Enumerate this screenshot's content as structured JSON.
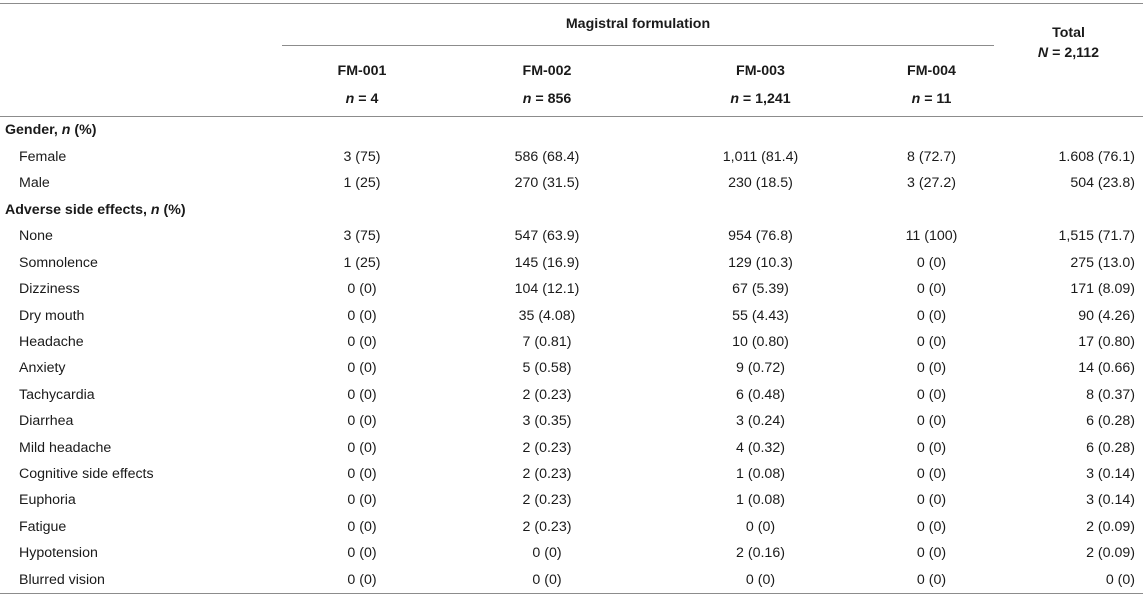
{
  "header": {
    "group_title": "Magistral formulation",
    "total_title": "Total",
    "total_n_prefix": "N",
    "total_n_value": " = 2,112",
    "columns": [
      {
        "code": "FM-001",
        "n_prefix": "n",
        "n_value": " = 4"
      },
      {
        "code": "FM-002",
        "n_prefix": "n",
        "n_value": " = 856"
      },
      {
        "code": "FM-003",
        "n_prefix": "n",
        "n_value": " = 1,241"
      },
      {
        "code": "FM-004",
        "n_prefix": "n",
        "n_value": " = 11"
      }
    ]
  },
  "sections": [
    {
      "title": "Gender, ",
      "title_italic": "n",
      "title_suffix": " (%)",
      "rows": [
        {
          "label": "Female",
          "values": [
            "3 (75)",
            "586 (68.4)",
            "1,011 (81.4)",
            "8 (72.7)",
            "1.608 (76.1)"
          ]
        },
        {
          "label": "Male",
          "values": [
            "1 (25)",
            "270 (31.5)",
            "230 (18.5)",
            "3 (27.2)",
            "504 (23.8)"
          ]
        }
      ]
    },
    {
      "title": "Adverse side effects, ",
      "title_italic": "n",
      "title_suffix": " (%)",
      "rows": [
        {
          "label": "None",
          "values": [
            "3 (75)",
            "547 (63.9)",
            "954 (76.8)",
            "11 (100)",
            "1,515 (71.7)"
          ]
        },
        {
          "label": "Somnolence",
          "values": [
            "1 (25)",
            "145 (16.9)",
            "129 (10.3)",
            "0 (0)",
            "275 (13.0)"
          ]
        },
        {
          "label": "Dizziness",
          "values": [
            "0 (0)",
            "104 (12.1)",
            "67 (5.39)",
            "0 (0)",
            "171 (8.09)"
          ]
        },
        {
          "label": "Dry mouth",
          "values": [
            "0 (0)",
            "35 (4.08)",
            "55 (4.43)",
            "0 (0)",
            "90 (4.26)"
          ]
        },
        {
          "label": "Headache",
          "values": [
            "0 (0)",
            "7 (0.81)",
            "10 (0.80)",
            "0 (0)",
            "17 (0.80)"
          ]
        },
        {
          "label": "Anxiety",
          "values": [
            "0 (0)",
            "5 (0.58)",
            "9 (0.72)",
            "0 (0)",
            "14 (0.66)"
          ]
        },
        {
          "label": "Tachycardia",
          "values": [
            "0 (0)",
            "2 (0.23)",
            "6 (0.48)",
            "0 (0)",
            "8 (0.37)"
          ]
        },
        {
          "label": "Diarrhea",
          "values": [
            "0 (0)",
            "3 (0.35)",
            "3 (0.24)",
            "0 (0)",
            "6 (0.28)"
          ]
        },
        {
          "label": "Mild headache",
          "values": [
            "0 (0)",
            "2 (0.23)",
            "4 (0.32)",
            "0 (0)",
            "6 (0.28)"
          ]
        },
        {
          "label": "Cognitive side effects",
          "values": [
            "0 (0)",
            "2 (0.23)",
            "1 (0.08)",
            "0 (0)",
            "3 (0.14)"
          ]
        },
        {
          "label": "Euphoria",
          "values": [
            "0 (0)",
            "2 (0.23)",
            "1 (0.08)",
            "0 (0)",
            "3 (0.14)"
          ]
        },
        {
          "label": "Fatigue",
          "values": [
            "0 (0)",
            "2 (0.23)",
            "0 (0)",
            "0 (0)",
            "2 (0.09)"
          ]
        },
        {
          "label": "Hypotension",
          "values": [
            "0 (0)",
            "0 (0)",
            "2 (0.16)",
            "0 (0)",
            "2 (0.09)"
          ]
        },
        {
          "label": "Blurred vision",
          "values": [
            "0 (0)",
            "0 (0)",
            "0 (0)",
            "0 (0)",
            "0 (0)"
          ]
        }
      ]
    }
  ]
}
